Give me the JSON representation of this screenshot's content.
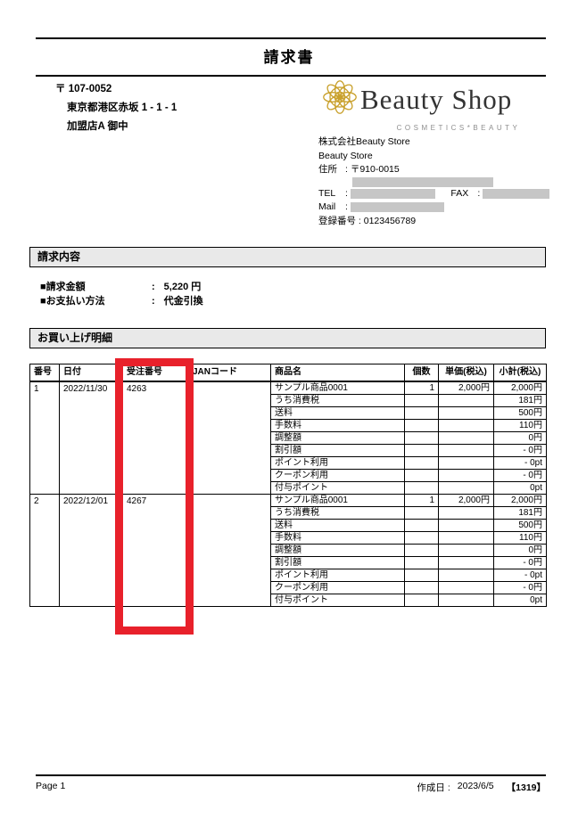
{
  "title": "請求書",
  "recipient": {
    "postal": "〒 107-0052",
    "address": "東京都港区赤坂 1 - 1 - 1",
    "name": "加盟店A 御中"
  },
  "logo": {
    "name": "Beauty Shop",
    "tagline": "COSMETICS*BEAUTY",
    "flower_color": "#c9a12d"
  },
  "issuer": {
    "company": "株式会社Beauty Store",
    "store": "Beauty Store",
    "address_label": "住所",
    "colon": ":",
    "postal": "〒910-0015",
    "tel_label": "TEL",
    "fax_label": "FAX",
    "mail_label": "Mail",
    "registration_line": "登録番号 : 0123456789"
  },
  "sections": {
    "billing": "請求内容",
    "details": "お買い上げ明細"
  },
  "billing": {
    "amount_label": "■請求金額",
    "amount_colon": ":",
    "amount_value": "5,220 円",
    "method_label": "■お支払い方法",
    "method_colon": ":",
    "method_value": "代金引換"
  },
  "table": {
    "headers": [
      "番号",
      "日付",
      "受注番号",
      "JANコード",
      "商品名",
      "個数",
      "単価(税込)",
      "小計(税込)"
    ],
    "orders": [
      {
        "no": "1",
        "date": "2022/11/30",
        "order_no": "4263",
        "jan": "",
        "lines": [
          {
            "name": "サンプル商品0001",
            "qty": "1",
            "unit": "2,000円",
            "subtotal": "2,000円"
          },
          {
            "name": "うち消費税",
            "qty": "",
            "unit": "",
            "subtotal": "181円"
          },
          {
            "name": "送料",
            "qty": "",
            "unit": "",
            "subtotal": "500円"
          },
          {
            "name": "手数料",
            "qty": "",
            "unit": "",
            "subtotal": "110円"
          },
          {
            "name": "調整額",
            "qty": "",
            "unit": "",
            "subtotal": "0円"
          },
          {
            "name": "割引額",
            "qty": "",
            "unit": "",
            "subtotal": "- 0円"
          },
          {
            "name": "ポイント利用",
            "qty": "",
            "unit": "",
            "subtotal": "- 0pt"
          },
          {
            "name": "クーポン利用",
            "qty": "",
            "unit": "",
            "subtotal": "- 0円"
          },
          {
            "name": "付与ポイント",
            "qty": "",
            "unit": "",
            "subtotal": "0pt"
          }
        ]
      },
      {
        "no": "2",
        "date": "2022/12/01",
        "order_no": "4267",
        "jan": "",
        "lines": [
          {
            "name": "サンプル商品0001",
            "qty": "1",
            "unit": "2,000円",
            "subtotal": "2,000円"
          },
          {
            "name": "うち消費税",
            "qty": "",
            "unit": "",
            "subtotal": "181円"
          },
          {
            "name": "送料",
            "qty": "",
            "unit": "",
            "subtotal": "500円"
          },
          {
            "name": "手数料",
            "qty": "",
            "unit": "",
            "subtotal": "110円"
          },
          {
            "name": "調整額",
            "qty": "",
            "unit": "",
            "subtotal": "0円"
          },
          {
            "name": "割引額",
            "qty": "",
            "unit": "",
            "subtotal": "- 0円"
          },
          {
            "name": "ポイント利用",
            "qty": "",
            "unit": "",
            "subtotal": "- 0pt"
          },
          {
            "name": "クーポン利用",
            "qty": "",
            "unit": "",
            "subtotal": "- 0円"
          },
          {
            "name": "付与ポイント",
            "qty": "",
            "unit": "",
            "subtotal": "0pt"
          }
        ]
      }
    ]
  },
  "highlight": {
    "color": "#e8212b",
    "target": "受注番号 column"
  },
  "footer": {
    "page": "Page 1",
    "created_label": "作成日 :",
    "created_date": "2023/6/5",
    "doc_number": "【1319】"
  }
}
